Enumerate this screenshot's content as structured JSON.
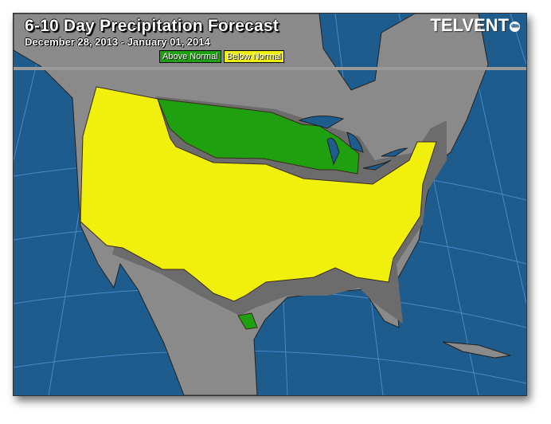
{
  "header": {
    "title": "6-10 Day Precipitation Forecast",
    "date_range": "December 28, 2013 - January 01, 2014",
    "logo": "TELVENT",
    "logo_badge": "dtn"
  },
  "legend": [
    {
      "label": "Above Normal",
      "color": "#1ea010"
    },
    {
      "label": "Below Normal",
      "color": "#f0f00c"
    }
  ],
  "colors": {
    "ocean": "#1d5c8c",
    "land": "#8a8a8a",
    "near_normal": "#6c6c6c",
    "above_normal": "#1ea010",
    "below_normal": "#f0f00c",
    "graticule": "#4a8ac8"
  }
}
